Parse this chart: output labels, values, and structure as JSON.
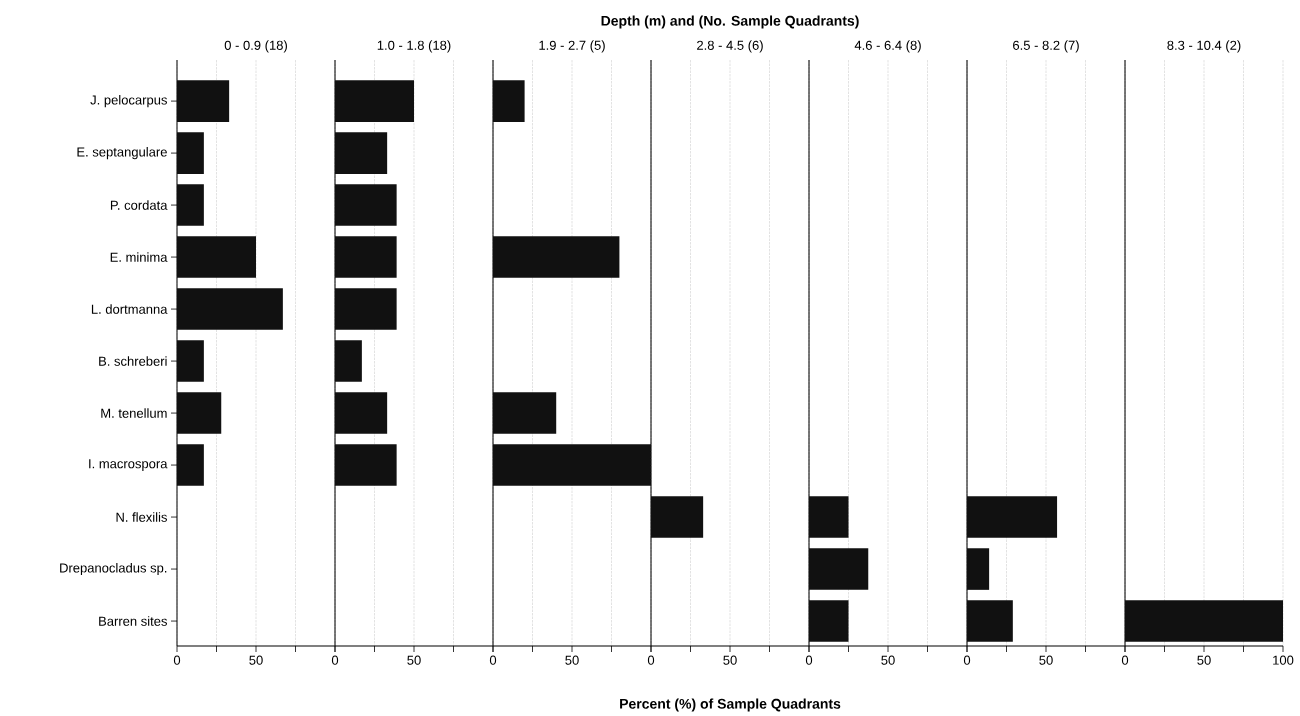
{
  "chart_data": [
    {
      "type": "bar",
      "orientation": "horizontal",
      "subtitle": "0 - 0.9 (18)",
      "categories": [
        "J. pelocarpus",
        "E. septangulare",
        "P. cordata",
        "E. minima",
        "L. dortmanna",
        "B. schreberi",
        "M. tenellum",
        "I. macrospora",
        "N. flexilis",
        "Drepanocladus sp.",
        "Barren sites"
      ],
      "values": [
        33,
        17,
        17,
        50,
        67,
        17,
        28,
        17,
        null,
        null,
        null
      ],
      "color": "#111111",
      "xlim": [
        0,
        100
      ],
      "xticks": [
        0,
        {
          "value": 25,
          "label": null
        },
        50,
        {
          "value": 75,
          "label": null
        },
        {
          "value": 100,
          "label": null
        }
      ],
      "grid": "x"
    },
    {
      "type": "bar",
      "orientation": "horizontal",
      "subtitle": "1.0 - 1.8 (18)",
      "categories": [
        null,
        null,
        null,
        null,
        null,
        null,
        null,
        null,
        null,
        null,
        null
      ],
      "values": [
        50,
        33,
        39,
        39,
        39,
        17,
        33,
        39,
        null,
        null,
        null
      ],
      "color": "#111111",
      "xlim": [
        0,
        100
      ],
      "xticks": [
        0,
        {
          "value": 25,
          "label": null
        },
        50,
        {
          "value": 75,
          "label": null
        },
        {
          "value": 100,
          "label": null
        }
      ],
      "grid": "x",
      "tick_labels": "x"
    },
    {
      "type": "bar",
      "orientation": "horizontal",
      "subtitle": "1.9 - 2.7 (5)",
      "categories": [
        null,
        null,
        null,
        null,
        null,
        null,
        null,
        null,
        null,
        null,
        null
      ],
      "values": [
        20,
        null,
        null,
        80,
        null,
        null,
        40,
        100,
        null,
        null,
        null
      ],
      "color": "#111111",
      "xlim": [
        0,
        100
      ],
      "xticks": [
        0,
        {
          "value": 25,
          "label": null
        },
        50,
        {
          "value": 75,
          "label": null
        },
        {
          "value": 100,
          "label": null
        }
      ],
      "grid": "x",
      "tick_labels": "x"
    },
    {
      "type": "bar",
      "orientation": "horizontal",
      "subtitle": "2.8 - 4.5 (6)",
      "categories": [
        null,
        null,
        null,
        null,
        null,
        null,
        null,
        null,
        null,
        null,
        null
      ],
      "values": [
        null,
        null,
        null,
        null,
        null,
        null,
        null,
        null,
        33,
        null,
        null
      ],
      "color": "#111111",
      "xlim": [
        0,
        100
      ],
      "xticks": [
        0,
        {
          "value": 25,
          "label": null
        },
        50,
        {
          "value": 75,
          "label": null
        },
        {
          "value": 100,
          "label": null
        }
      ],
      "grid": "x",
      "tick_labels": "x"
    },
    {
      "type": "bar",
      "orientation": "horizontal",
      "subtitle": "4.6 - 6.4 (8)",
      "categories": [
        null,
        null,
        null,
        null,
        null,
        null,
        null,
        null,
        null,
        null,
        null
      ],
      "values": [
        null,
        null,
        null,
        null,
        null,
        null,
        null,
        null,
        25,
        37.5,
        25
      ],
      "color": "#111111",
      "xlim": [
        0,
        100
      ],
      "xticks": [
        0,
        {
          "value": 25,
          "label": null
        },
        50,
        {
          "value": 75,
          "label": null
        },
        {
          "value": 100,
          "label": null
        }
      ],
      "grid": "x",
      "tick_labels": "x"
    },
    {
      "type": "bar",
      "orientation": "horizontal",
      "subtitle": "6.5 - 8.2 (7)",
      "categories": [
        null,
        null,
        null,
        null,
        null,
        null,
        null,
        null,
        null,
        null,
        null
      ],
      "values": [
        null,
        null,
        null,
        null,
        null,
        null,
        null,
        null,
        57,
        14,
        29
      ],
      "color": "#111111",
      "xlim": [
        0,
        100
      ],
      "xticks": [
        0,
        {
          "value": 25,
          "label": null
        },
        50,
        {
          "value": 75,
          "label": null
        },
        {
          "value": 100,
          "label": null
        }
      ],
      "grid": "x",
      "tick_labels": "x"
    },
    {
      "type": "bar",
      "orientation": "horizontal",
      "subtitle": "8.3 - 10.4 (2)",
      "categories": [
        null,
        null,
        null,
        null,
        null,
        null,
        null,
        null,
        null,
        null,
        null
      ],
      "values": [
        null,
        null,
        null,
        null,
        null,
        null,
        null,
        null,
        null,
        null,
        100
      ],
      "color": "#111111",
      "xlim": [
        0,
        100
      ],
      "xticks": [
        0,
        {
          "value": 25,
          "label": null
        },
        50,
        {
          "value": 75,
          "label": null
        },
        100
      ],
      "grid": "x",
      "tick_labels": "x"
    },
    {
      "type": "other",
      "title": "Depth (m) and (No. Sample Quadrants)",
      "xlabel": "Percent (%) of Sample Quadrants"
    }
  ]
}
